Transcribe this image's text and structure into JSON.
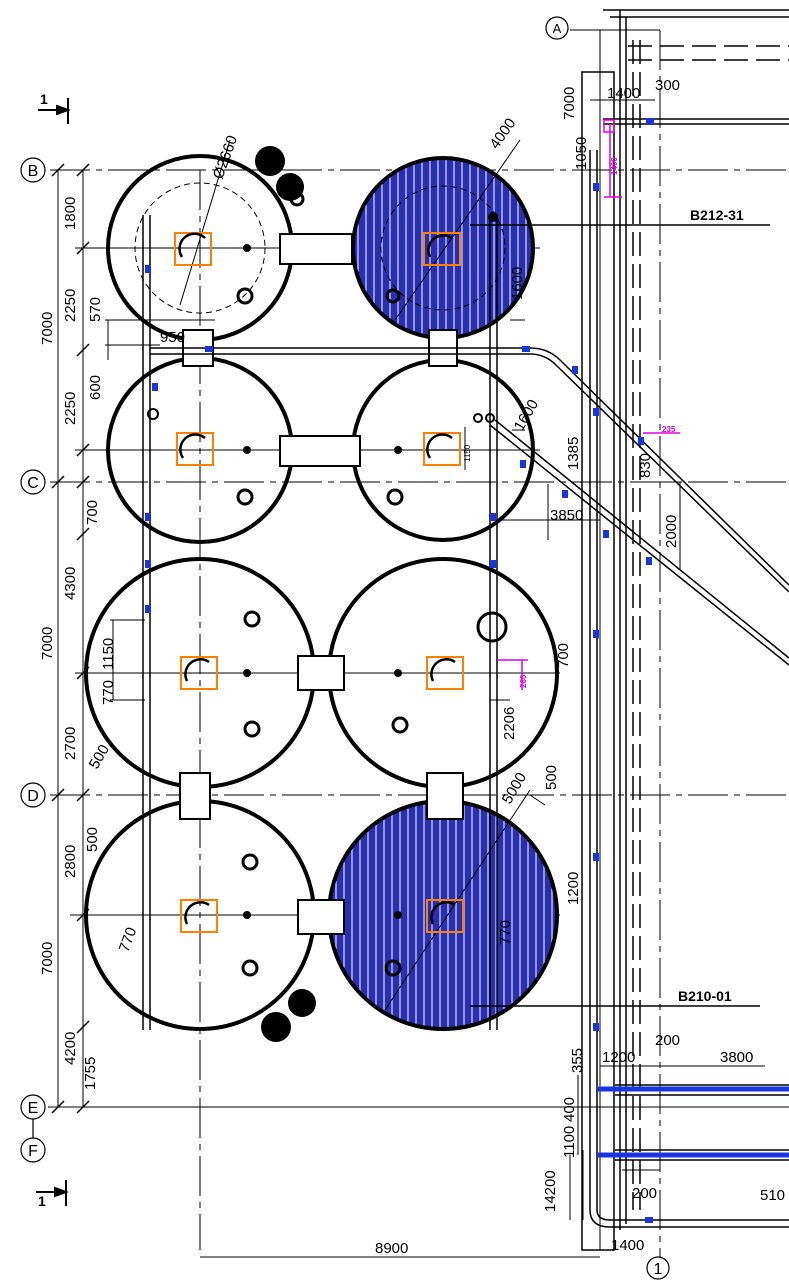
{
  "axes": {
    "A": "A",
    "B": "B",
    "C": "C",
    "D": "D",
    "E": "E",
    "F": "F",
    "one": "1"
  },
  "section_marker": "1",
  "tags": {
    "top": "B212-31",
    "bottom": "B210-01"
  },
  "diameters": {
    "d_top_left": "Ø2660",
    "d_top_right": "4000",
    "d_bottom": "5000"
  },
  "dims": {
    "d7000_a": "7000",
    "d1400_top": "1400",
    "d300": "300",
    "d1050": "1050",
    "d1400_v": "1400",
    "d1800": "1800",
    "d2250_a": "2250",
    "d570": "570",
    "d7000_b": "7000",
    "d950": "950",
    "d2250_b": "2250",
    "d600": "600",
    "d1600_a": "1600",
    "d1600_b": "1600",
    "d1385": "1385",
    "d830": "830",
    "d235": "235",
    "d1150_sm": "1150",
    "d700_a": "700",
    "d3850": "3850",
    "d2000": "2000",
    "d4300": "4300",
    "d7000_c": "7000",
    "d1150": "1150",
    "d770_a": "770",
    "d700_b": "700",
    "d280": "280",
    "d2700": "2700",
    "d500_a": "500",
    "d2206": "2206",
    "d500_b": "500",
    "d2800": "2800",
    "d500_c": "500",
    "d1200_v": "1200",
    "d770_b": "770",
    "d7000_d": "7000",
    "d770_c": "770",
    "d4200": "4200",
    "d1755": "1755",
    "d355": "355",
    "d1200_h": "1200",
    "d200_a": "200",
    "d3800": "3800",
    "d400": "400",
    "d1100": "1100",
    "d14200": "14200",
    "d200_b": "200",
    "d510": "510",
    "d1400_bot": "1400",
    "d8900": "8900"
  },
  "colors": {
    "line": "#000000",
    "hatch": "#1a2fd0",
    "orange": "#ff8000",
    "magenta": "#e000e0",
    "pipe_blue": "#1a35e0"
  }
}
